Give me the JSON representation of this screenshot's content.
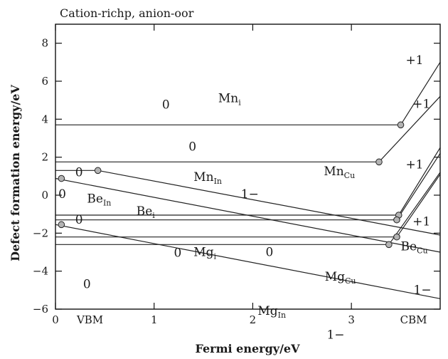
{
  "chart_data": {
    "type": "line",
    "title": "Cation-richp, anion-oor",
    "xlabel": "Fermi energy/eV",
    "ylabel": "Defect formation energy/eV",
    "xlim": [
      0,
      3.9
    ],
    "ylim": [
      -6,
      9
    ],
    "xticks": [
      {
        "value": 0,
        "label": "0"
      },
      {
        "value": 1,
        "label": "1"
      },
      {
        "value": 2,
        "label": "2"
      },
      {
        "value": 3,
        "label": "3"
      }
    ],
    "xtick_text": [
      {
        "value": 0.35,
        "label": "VBM"
      },
      {
        "value": 3.63,
        "label": "CBM"
      }
    ],
    "yticks": [
      -6,
      -4,
      -2,
      0,
      2,
      4,
      6,
      8
    ],
    "series": [
      {
        "name": "Mn_i",
        "points": [
          [
            0,
            3.7
          ],
          [
            3.5,
            3.7
          ],
          [
            3.9,
            7.0
          ]
        ]
      },
      {
        "name": "Mn_Cu",
        "points": [
          [
            0,
            1.75
          ],
          [
            3.28,
            1.75
          ],
          [
            3.9,
            5.2
          ]
        ]
      },
      {
        "name": "Mn_In",
        "points": [
          [
            0,
            1.3
          ],
          [
            0.43,
            1.3
          ],
          [
            3.9,
            -2.1
          ]
        ]
      },
      {
        "name": "Be_In",
        "points": [
          [
            0,
            0.88
          ],
          [
            3.9,
            -3.0
          ]
        ]
      },
      {
        "name": "Be_i",
        "points": [
          [
            0,
            -1.05
          ],
          [
            3.48,
            -1.05
          ],
          [
            3.9,
            2.5
          ]
        ]
      },
      {
        "name": "Mg_i",
        "points": [
          [
            0,
            -1.3
          ],
          [
            3.46,
            -1.3
          ],
          [
            3.9,
            2.2
          ]
        ]
      },
      {
        "name": "Be_Cu",
        "points": [
          [
            0,
            -2.2
          ],
          [
            3.46,
            -2.2
          ],
          [
            3.9,
            1.1
          ]
        ]
      },
      {
        "name": "Mg_Cu",
        "points": [
          [
            0,
            -2.6
          ],
          [
            3.38,
            -2.6
          ],
          [
            3.9,
            1.2
          ]
        ]
      },
      {
        "name": "Mg_In",
        "points": [
          [
            0,
            -1.55
          ],
          [
            3.9,
            -5.45
          ]
        ]
      }
    ],
    "transition_points": [
      {
        "x": 3.5,
        "y": 3.7
      },
      {
        "x": 3.28,
        "y": 1.75
      },
      {
        "x": 0.43,
        "y": 1.3
      },
      {
        "x": 0.06,
        "y": 0.88
      },
      {
        "x": 3.48,
        "y": -1.05
      },
      {
        "x": 3.46,
        "y": -1.3
      },
      {
        "x": 3.46,
        "y": -2.2
      },
      {
        "x": 3.38,
        "y": -2.6
      },
      {
        "x": 0.06,
        "y": -1.55
      }
    ],
    "annotations": [
      {
        "text": "0",
        "x": 1.08,
        "y": 4.55
      },
      {
        "text": "Mn",
        "sub": "i",
        "x": 1.65,
        "y": 4.9
      },
      {
        "text": "0",
        "x": 1.35,
        "y": 2.35
      },
      {
        "text": "Mn",
        "sub": "Cu",
        "x": 2.72,
        "y": 1.05
      },
      {
        "text": "+1",
        "x": 3.55,
        "y": 6.9
      },
      {
        "text": "+1",
        "x": 3.62,
        "y": 4.6
      },
      {
        "text": "+1",
        "x": 3.55,
        "y": 1.4
      },
      {
        "text": "+1",
        "x": 3.62,
        "y": -1.6
      },
      {
        "text": "0",
        "x": 0.2,
        "y": 1.0
      },
      {
        "text": "Mn",
        "sub": "In",
        "x": 1.4,
        "y": 0.75
      },
      {
        "text": "1−",
        "x": 1.88,
        "y": -0.15
      },
      {
        "text": "0",
        "x": 0.03,
        "y": -0.15
      },
      {
        "text": "Be",
        "sub": "In",
        "x": 0.32,
        "y": -0.4
      },
      {
        "text": "Be",
        "sub": "i",
        "x": 0.82,
        "y": -1.05
      },
      {
        "text": "0",
        "x": 0.2,
        "y": -1.5
      },
      {
        "text": "0",
        "x": 1.2,
        "y": -3.25
      },
      {
        "text": "Mg",
        "sub": "i",
        "x": 1.4,
        "y": -3.2
      },
      {
        "text": "0",
        "x": 2.13,
        "y": -3.2
      },
      {
        "text": "Be",
        "sub": "Cu",
        "x": 3.5,
        "y": -2.9
      },
      {
        "text": "0",
        "x": 0.28,
        "y": -4.9
      },
      {
        "text": "Mg",
        "sub": "Cu",
        "x": 2.73,
        "y": -4.5
      },
      {
        "text": "1−",
        "x": 3.63,
        "y": -5.2
      },
      {
        "text": "Mg",
        "sub": "In",
        "x": 2.05,
        "y": -6.3
      },
      {
        "text": "1−",
        "x": 2.75,
        "y": -7.55
      }
    ]
  }
}
